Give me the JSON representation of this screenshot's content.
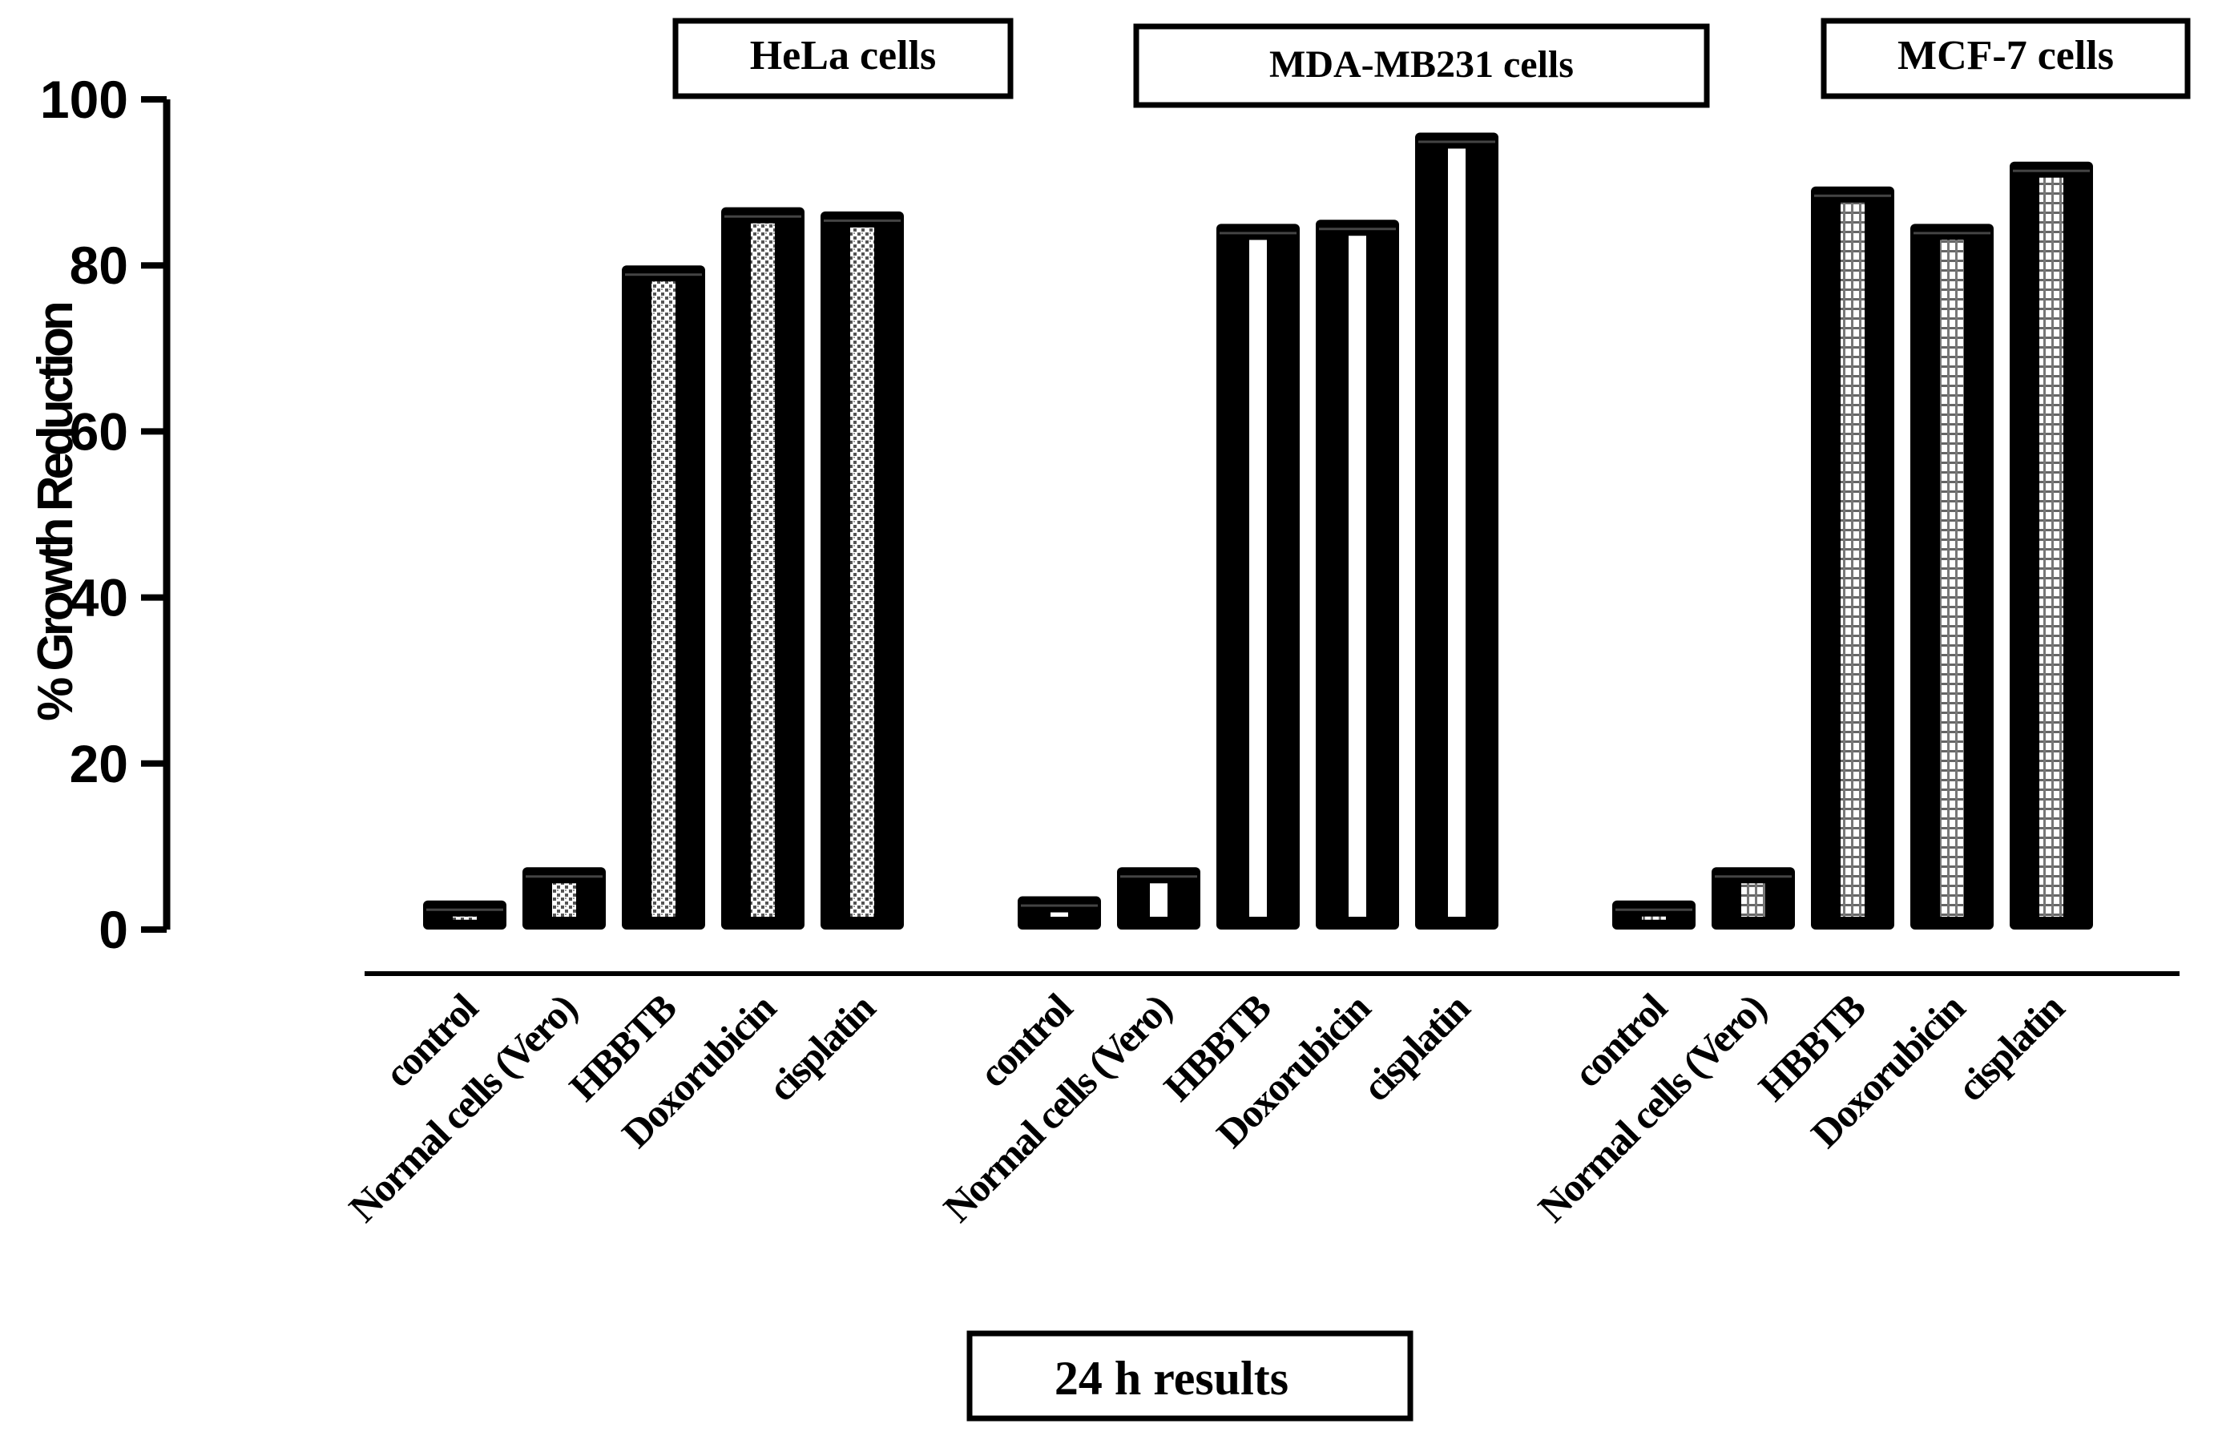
{
  "chart_data": {
    "type": "bar",
    "title": "24 h results",
    "ylabel": "% Growth Reduction",
    "xlabel": "",
    "ylim": [
      0,
      100
    ],
    "yticks": [
      "0",
      "20",
      "40",
      "60",
      "80",
      "100"
    ],
    "grid": false,
    "categories": [
      "control",
      "Normal cells (Vero)",
      "HBBTB",
      "Doxorubicin",
      "cisplatin"
    ],
    "groups": [
      {
        "name": "HeLa cells",
        "values": [
          3.5,
          7.5,
          80,
          87,
          86.5
        ],
        "pattern": "dots"
      },
      {
        "name": "MDA-MB231 cells",
        "values": [
          4,
          7.5,
          85,
          85.5,
          96
        ],
        "pattern": "stripe"
      },
      {
        "name": "MCF-7 cells",
        "values": [
          3.5,
          7.5,
          89.5,
          85,
          92.5
        ],
        "pattern": "grid"
      }
    ]
  }
}
